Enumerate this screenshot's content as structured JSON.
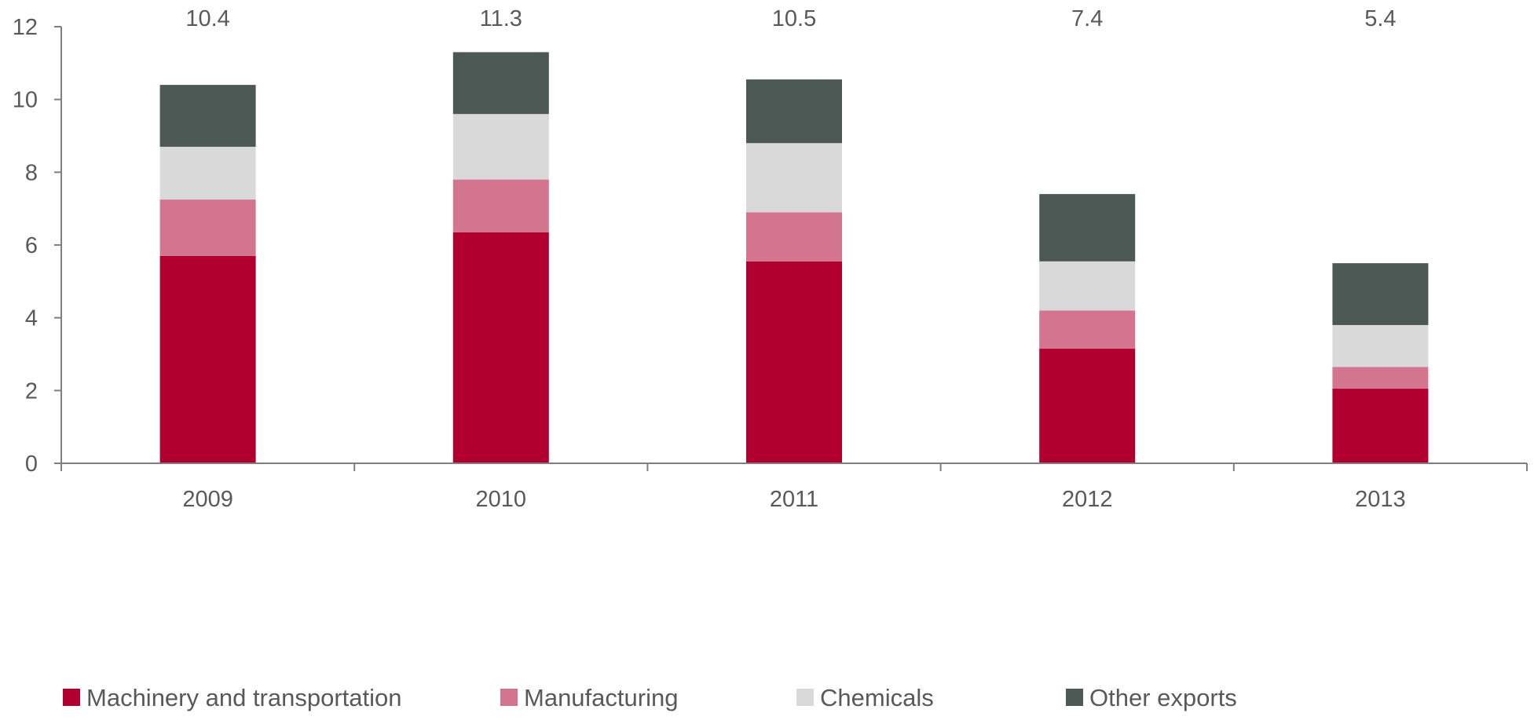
{
  "chart_data": {
    "type": "bar",
    "stacked": true,
    "categories": [
      "2009",
      "2010",
      "2011",
      "2012",
      "2013"
    ],
    "series": [
      {
        "name": "Machinery and transportation",
        "color": "#b10030",
        "values": [
          5.7,
          6.35,
          5.55,
          3.15,
          2.05
        ]
      },
      {
        "name": "Manufacturing",
        "color": "#d47590",
        "values": [
          1.55,
          1.45,
          1.35,
          1.05,
          0.6
        ]
      },
      {
        "name": "Chemicals",
        "color": "#d9d9d9",
        "values": [
          1.45,
          1.8,
          1.9,
          1.35,
          1.15
        ]
      },
      {
        "name": "Other exports",
        "color": "#4b5853",
        "values": [
          1.7,
          1.7,
          1.75,
          1.85,
          1.7
        ]
      }
    ],
    "totals": [
      "10.4",
      "11.3",
      "10.5",
      "7.4",
      "5.4"
    ],
    "ylim": [
      0,
      12
    ],
    "yticks": [
      "0",
      "2",
      "4",
      "6",
      "8",
      "10",
      "12"
    ],
    "title": "",
    "xlabel": "",
    "ylabel": "",
    "grid": false,
    "legend_position": "bottom"
  }
}
